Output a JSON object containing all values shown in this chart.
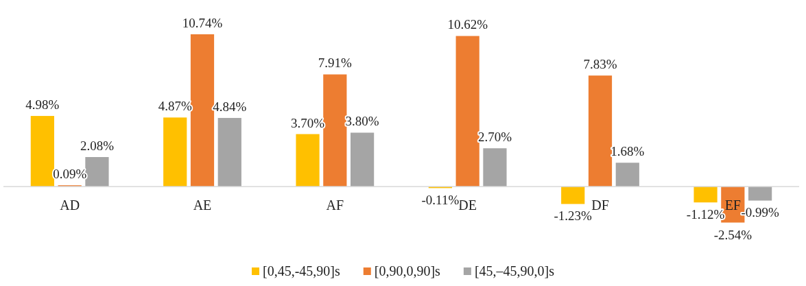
{
  "chart_data": {
    "type": "bar",
    "categories": [
      "AD",
      "AE",
      "AF",
      "DE",
      "DF",
      "EF"
    ],
    "series": [
      {
        "name": "[0,45,-45,90]s",
        "color": "#ffc000",
        "values": [
          4.98,
          4.87,
          3.7,
          -0.11,
          -1.23,
          -1.12
        ],
        "value_labels": [
          "4.98%",
          "4.87%",
          "3.70%",
          "-0.11%",
          "-1.23%",
          "-1.12%"
        ]
      },
      {
        "name": "[0,90,0,90]s",
        "color": "#ed7d31",
        "values": [
          0.09,
          10.74,
          7.91,
          10.62,
          7.83,
          -2.54
        ],
        "value_labels": [
          "0.09%",
          "10.74%",
          "7.91%",
          "10.62%",
          "7.83%",
          "-2.54%"
        ]
      },
      {
        "name": "[45,–45,90,0]s",
        "color": "#a5a5a5",
        "values": [
          2.08,
          4.84,
          3.8,
          2.7,
          1.68,
          -0.99
        ],
        "value_labels": [
          "2.08%",
          "4.84%",
          "3.80%",
          "2.70%",
          "1.68%",
          "-0.99%"
        ]
      }
    ],
    "legend": "bottom"
  }
}
